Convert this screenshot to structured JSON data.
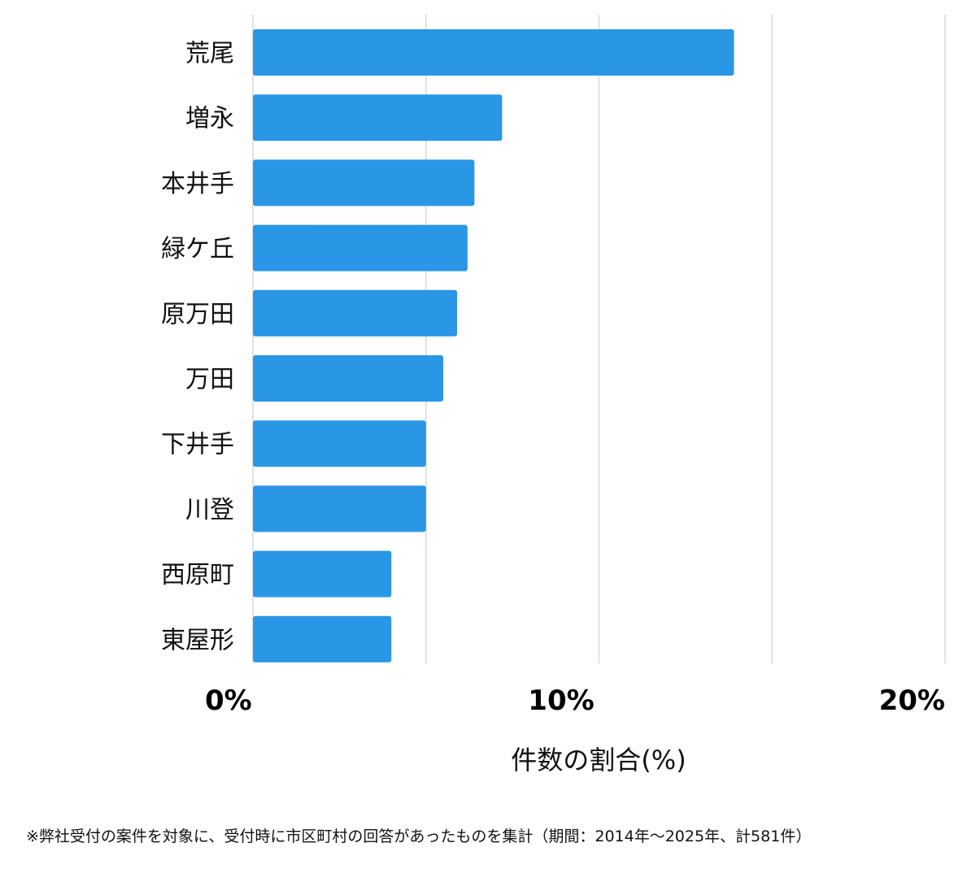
{
  "chart_data": {
    "type": "bar",
    "orientation": "horizontal",
    "categories": [
      "荒尾",
      "増永",
      "本井手",
      "緑ケ丘",
      "原万田",
      "万田",
      "下井手",
      "川登",
      "西原町",
      "東屋形"
    ],
    "values": [
      13.9,
      7.2,
      6.4,
      6.2,
      5.9,
      5.5,
      5.0,
      5.0,
      4.0,
      4.0
    ],
    "xlim": [
      0,
      20
    ],
    "xticks": [
      {
        "value": 0,
        "label": "0%"
      },
      {
        "value": 10,
        "label": "10%"
      },
      {
        "value": 20,
        "label": "20%"
      }
    ],
    "gridlines": [
      0,
      5,
      10,
      15,
      20
    ],
    "xlabel": "件数の割合(%)",
    "ylabel": "",
    "bar_color": "#2a96e6",
    "grid_color": "#d9d9d9"
  },
  "footnote": "※弊社受付の案件を対象に、受付時に市区町村の回答があったものを集計（期間：2014年～2025年、計581件）"
}
